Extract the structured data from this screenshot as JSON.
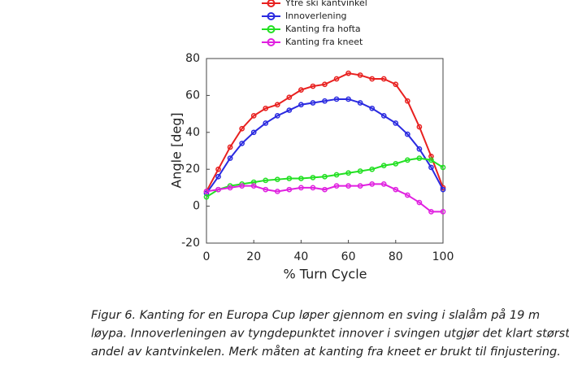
{
  "chart_data": {
    "type": "line",
    "xlabel": "% Turn Cycle",
    "ylabel": "Angle [deg]",
    "x": [
      0,
      5,
      10,
      15,
      20,
      25,
      30,
      35,
      40,
      45,
      50,
      55,
      60,
      65,
      70,
      75,
      80,
      85,
      90,
      95,
      100
    ],
    "series": [
      {
        "name": "Ytre ski kantvinkel",
        "color": "#e8201f",
        "values": [
          8,
          20,
          32,
          42,
          49,
          53,
          55,
          59,
          63,
          65,
          66,
          69,
          72,
          71,
          69,
          69,
          66,
          57,
          43,
          27,
          10
        ]
      },
      {
        "name": "Innoverlening",
        "color": "#2a2ae0",
        "values": [
          7,
          16,
          26,
          34,
          40,
          45,
          49,
          52,
          55,
          56,
          57,
          58,
          58,
          56,
          53,
          49,
          45,
          39,
          31,
          21,
          9
        ]
      },
      {
        "name": "Kanting fra hofta",
        "color": "#22e022",
        "values": [
          5,
          9,
          11,
          12,
          13,
          14,
          14.5,
          15,
          15,
          15.5,
          16,
          17,
          18,
          19,
          20,
          22,
          23,
          25,
          26,
          25,
          21
        ]
      },
      {
        "name": "Kanting fra kneet",
        "color": "#e020e0",
        "values": [
          8,
          9,
          10,
          11,
          11,
          9,
          8,
          9,
          10,
          10,
          9,
          11,
          11,
          11,
          12,
          12,
          9,
          6,
          2,
          -3,
          -3
        ]
      }
    ],
    "xlim": [
      0,
      100
    ],
    "xticks": [
      0,
      20,
      40,
      60,
      80,
      100
    ],
    "ylim": [
      -20,
      80
    ],
    "yticks": [
      -20,
      0,
      20,
      40,
      60,
      80
    ]
  },
  "caption_lines": [
    "Figur 6. Kanting for en Europa Cup løper gjennom en sving i slalåm på 19 m",
    "løypa. Innoverleningen av tyngdepunktet innover i svingen utgjør det klart størst",
    "andel av kantvinkelen. Merk måten at kanting fra kneet er brukt til finjustering."
  ]
}
